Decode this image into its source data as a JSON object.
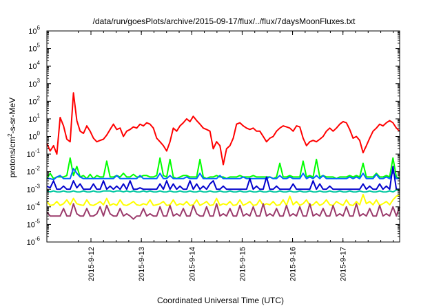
{
  "chart_data": {
    "type": "line",
    "title": "/data/run/goesPlots/archive/2015-09-17/flux/../flux/7daysMoonFluxes.txt",
    "xlabel": "Coordinated Universal Time (UTC)",
    "ylabel": {
      "base": "protons/cm",
      "sup": "2",
      "rest": "-s-sr-MeV"
    },
    "y_scale": "log",
    "ylim": [
      1e-06,
      1000000.0
    ],
    "y_ticks": [
      {
        "base": "10",
        "exp": "6",
        "value": 1000000.0
      },
      {
        "base": "10",
        "exp": "5",
        "value": 100000.0
      },
      {
        "base": "10",
        "exp": "4",
        "value": 10000.0
      },
      {
        "base": "10",
        "exp": "3",
        "value": 1000.0
      },
      {
        "base": "10",
        "exp": "2",
        "value": 100.0
      },
      {
        "base": "10",
        "exp": "1",
        "value": 10.0
      },
      {
        "base": "10",
        "exp": "0",
        "value": 1
      },
      {
        "base": "10",
        "exp": "-1",
        "value": 0.1
      },
      {
        "base": "10",
        "exp": "-2",
        "value": 0.01
      },
      {
        "base": "10",
        "exp": "-3",
        "value": 0.001
      },
      {
        "base": "10",
        "exp": "-4",
        "value": 0.0001
      },
      {
        "base": "10",
        "exp": "-5",
        "value": 1e-05
      },
      {
        "base": "10",
        "exp": "-6",
        "value": 1e-06
      }
    ],
    "xlim": [
      "2015-09-11 03:00",
      "2015-09-18 00:00"
    ],
    "x_ticks": [
      "2015-9-12",
      "2015-9-13",
      "2015-9-14",
      "2015-9-15",
      "2015-9-16",
      "2015-9-17"
    ],
    "grid": false,
    "legend": "none",
    "series": [
      {
        "color": "#ff0000",
        "values": [
          0.4,
          0.15,
          0.3,
          0.1,
          12,
          4,
          0.7,
          0.5,
          300,
          8,
          2,
          1.5,
          4,
          2,
          0.8,
          0.5,
          0.6,
          0.7,
          1.2,
          2.5,
          5,
          2.5,
          3,
          1,
          2,
          2.5,
          3.5,
          3,
          5,
          4,
          6,
          5,
          3,
          0.8,
          0.5,
          0.3,
          0.15,
          0.5,
          3,
          2,
          4,
          6,
          10,
          7,
          14,
          8,
          5,
          3,
          2.5,
          2,
          0.2,
          0.5,
          0.3,
          0.025,
          0.2,
          0.3,
          0.8,
          5,
          6,
          4,
          3,
          2.5,
          3,
          2,
          2,
          1,
          0.5,
          0.8,
          1,
          2,
          3,
          4,
          3.5,
          3,
          2,
          4,
          3.5,
          0.8,
          0.3,
          0.5,
          0.6,
          0.5,
          0.7,
          1,
          2,
          3,
          2,
          3,
          5,
          7,
          6,
          2.5,
          0.8,
          1,
          0.6,
          0.12,
          0.3,
          0.8,
          2,
          3,
          5,
          4,
          6,
          8,
          6,
          3,
          2
        ]
      },
      {
        "color": "#00ff00",
        "values": [
          0.004,
          0.008,
          0.004,
          0.005,
          0.005,
          0.005,
          0.006,
          0.06,
          0.006,
          0.02,
          0.005,
          0.006,
          0.004,
          0.007,
          0.004,
          0.006,
          0.005,
          0.005,
          0.04,
          0.005,
          0.005,
          0.006,
          0.005,
          0.008,
          0.005,
          0.005,
          0.007,
          0.005,
          0.005,
          0.006,
          0.006,
          0.005,
          0.005,
          0.006,
          0.06,
          0.006,
          0.005,
          0.05,
          0.005,
          0.004,
          0.005,
          0.006,
          0.006,
          0.005,
          0.005,
          0.005,
          0.05,
          0.005,
          0.004,
          0.005,
          0.005,
          0.006,
          0.005,
          0.005,
          0.004,
          0.005,
          0.005,
          0.005,
          0.006,
          0.005,
          0.005,
          0.005,
          0.006,
          0.005,
          0.005,
          0.005,
          0.005,
          0.005,
          0.004,
          0.005,
          0.03,
          0.005,
          0.005,
          0.006,
          0.005,
          0.005,
          0.005,
          0.04,
          0.005,
          0.006,
          0.005,
          0.05,
          0.005,
          0.006,
          0.005,
          0.005,
          0.005,
          0.004,
          0.005,
          0.005,
          0.005,
          0.006,
          0.005,
          0.006,
          0.005,
          0.03,
          0.005,
          0.005,
          0.005,
          0.008,
          0.005,
          0.005,
          0.006,
          0.005,
          0.06,
          0.005,
          0.004
        ]
      },
      {
        "color": "#0066ff",
        "values": [
          0.004,
          0.004,
          0.0035,
          0.005,
          0.006,
          0.004,
          0.004,
          0.004,
          0.015,
          0.008,
          0.005,
          0.004,
          0.004,
          0.004,
          0.004,
          0.004,
          0.004,
          0.004,
          0.004,
          0.004,
          0.004,
          0.006,
          0.004,
          0.004,
          0.004,
          0.004,
          0.004,
          0.004,
          0.006,
          0.004,
          0.004,
          0.004,
          0.004,
          0.004,
          0.008,
          0.004,
          0.004,
          0.006,
          0.004,
          0.004,
          0.004,
          0.004,
          0.005,
          0.004,
          0.004,
          0.004,
          0.008,
          0.004,
          0.004,
          0.004,
          0.004,
          0.004,
          0.006,
          0.004,
          0.004,
          0.004,
          0.004,
          0.004,
          0.004,
          0.005,
          0.004,
          0.004,
          0.004,
          0.004,
          0.004,
          0.004,
          0.004,
          0.005,
          0.004,
          0.004,
          0.006,
          0.004,
          0.004,
          0.005,
          0.004,
          0.004,
          0.004,
          0.008,
          0.004,
          0.005,
          0.004,
          0.006,
          0.004,
          0.006,
          0.004,
          0.004,
          0.004,
          0.004,
          0.004,
          0.004,
          0.004,
          0.005,
          0.004,
          0.005,
          0.004,
          0.008,
          0.004,
          0.004,
          0.004,
          0.007,
          0.004,
          0.004,
          0.005,
          0.004,
          0.01,
          0.004,
          0.004
        ]
      },
      {
        "color": "#0000cc",
        "values": [
          0.0015,
          0.0012,
          0.003,
          0.001,
          0.001,
          0.0015,
          0.001,
          0.001,
          0.003,
          0.0012,
          0.002,
          0.001,
          0.001,
          0.001,
          0.002,
          0.001,
          0.001,
          0.003,
          0.001,
          0.0015,
          0.001,
          0.0015,
          0.001,
          0.002,
          0.001,
          0.003,
          0.001,
          0.001,
          0.0012,
          0.001,
          0.001,
          0.001,
          0.001,
          0.001,
          0.002,
          0.001,
          0.003,
          0.001,
          0.002,
          0.001,
          0.0015,
          0.001,
          0.001,
          0.003,
          0.001,
          0.002,
          0.001,
          0.0015,
          0.001,
          0.002,
          0.003,
          0.001,
          0.001,
          0.0015,
          0.001,
          0.001,
          0.001,
          0.001,
          0.001,
          0.001,
          0.001,
          0.004,
          0.001,
          0.0015,
          0.001,
          0.001,
          0.005,
          0.001,
          0.001,
          0.0015,
          0.001,
          0.001,
          0.001,
          0.001,
          0.002,
          0.001,
          0.001,
          0.001,
          0.001,
          0.001,
          0.003,
          0.001,
          0.002,
          0.001,
          0.001,
          0.0015,
          0.001,
          0.001,
          0.001,
          0.001,
          0.001,
          0.001,
          0.001,
          0.001,
          0.001,
          0.002,
          0.001,
          0.0015,
          0.001,
          0.001,
          0.002,
          0.001,
          0.0015,
          0.001,
          0.02,
          0.001,
          0.001
        ]
      },
      {
        "color": "#00c8a0",
        "values": [
          0.0008,
          0.0007,
          0.0008,
          0.0007,
          0.0007,
          0.0008,
          0.0007,
          0.0007,
          0.0008,
          0.0007,
          0.0007,
          0.0008,
          0.0007,
          0.0007,
          0.0008,
          0.0007,
          0.0007,
          0.0008,
          0.0008,
          0.0008,
          0.0007,
          0.0008,
          0.0008,
          0.0007,
          0.0008,
          0.0007,
          0.0008,
          0.0007,
          0.0007,
          0.0008,
          0.0007,
          0.0008,
          0.0007,
          0.0007,
          0.0008,
          0.0007,
          0.0007,
          0.0008,
          0.0007,
          0.0007,
          0.0008,
          0.0007,
          0.0007,
          0.0008,
          0.0007,
          0.0007,
          0.0008,
          0.0007,
          0.0007,
          0.0008,
          0.0007,
          0.0007,
          0.0008,
          0.0007,
          0.0007,
          0.0008,
          0.0007,
          0.0007,
          0.0008,
          0.0007,
          0.0007,
          0.0008,
          0.0007,
          0.0007,
          0.0008,
          0.0007,
          0.0007,
          0.0008,
          0.0007,
          0.0007,
          0.0008,
          0.0007,
          0.0007,
          0.0008,
          0.0007,
          0.0007,
          0.0008,
          0.0007,
          0.0007,
          0.0008,
          0.0007,
          0.0007,
          0.0008,
          0.0007,
          0.0007,
          0.0008,
          0.0007,
          0.0007,
          0.0008,
          0.0007,
          0.0007,
          0.0008,
          0.0007,
          0.0007,
          0.0008,
          0.0007,
          0.0007,
          0.0008,
          0.0007,
          0.0007,
          0.0008,
          0.0007,
          0.0007,
          0.0008,
          0.0007,
          0.0009,
          0.0009
        ]
      },
      {
        "color": "#ffff00",
        "values": [
          0.0002,
          0.00012,
          0.00013,
          0.0002,
          0.00012,
          0.00015,
          0.00025,
          0.00013,
          0.0003,
          0.00015,
          0.00013,
          0.00012,
          0.00025,
          0.00013,
          0.00012,
          0.00015,
          0.0002,
          0.00013,
          0.0003,
          0.00012,
          0.00015,
          0.00012,
          0.00025,
          0.00013,
          0.00012,
          0.00015,
          0.0002,
          0.00013,
          0.00012,
          0.00015,
          0.00013,
          0.00025,
          0.00012,
          0.00013,
          0.00015,
          0.0002,
          0.00012,
          0.00013,
          0.00025,
          0.00012,
          0.00015,
          0.00013,
          0.0002,
          0.00012,
          0.00013,
          0.00025,
          0.00012,
          0.00015,
          0.0002,
          0.00012,
          0.00013,
          0.0003,
          0.00012,
          0.00015,
          0.00013,
          0.0002,
          0.00012,
          0.00013,
          0.00025,
          0.00012,
          0.00015,
          0.0002,
          0.00012,
          0.00013,
          0.00025,
          0.00012,
          0.00015,
          0.00013,
          0.0002,
          0.00012,
          0.00013,
          0.00025,
          0.00012,
          0.0004,
          0.00013,
          0.0002,
          0.00012,
          0.00015,
          0.00025,
          0.00012,
          0.00013,
          0.0002,
          0.00012,
          0.00015,
          0.00025,
          0.00013,
          0.00012,
          0.0002,
          0.00015,
          0.00012,
          0.00025,
          0.00013,
          0.00012,
          0.0002,
          0.00013,
          0.0005,
          0.00015,
          0.0002,
          0.00013,
          0.00025,
          0.00012,
          0.00015,
          0.0002,
          0.00013,
          0.00025,
          0.0004,
          0.0005
        ]
      },
      {
        "color": "#9b3a6b",
        "values": [
          5e-05,
          3e-05,
          3e-05,
          3e-05,
          3e-05,
          8e-05,
          3e-05,
          3e-05,
          0.00015,
          4e-05,
          3e-05,
          3e-05,
          8e-05,
          3e-05,
          3e-05,
          4e-05,
          0.0001,
          3e-05,
          0.00012,
          4e-05,
          3e-05,
          3e-05,
          8e-05,
          3e-05,
          4e-05,
          3e-05,
          2e-05,
          3e-05,
          3e-05,
          8e-05,
          3e-05,
          4e-05,
          3e-05,
          3e-05,
          0.0001,
          3e-05,
          3e-05,
          0.00012,
          3e-05,
          4e-05,
          3e-05,
          8e-05,
          3e-05,
          3e-05,
          0.00012,
          4e-05,
          3e-05,
          3e-05,
          0.0001,
          3e-05,
          3e-05,
          0.00015,
          3e-05,
          4e-05,
          3e-05,
          8e-05,
          3e-05,
          3e-05,
          0.00012,
          3e-05,
          4e-05,
          3e-05,
          0.0001,
          3e-05,
          3e-05,
          0.00015,
          3e-05,
          4e-05,
          3e-05,
          8e-05,
          3e-05,
          3e-05,
          0.00012,
          3e-05,
          4e-05,
          3e-05,
          0.0001,
          3e-05,
          3e-05,
          0.00015,
          3e-05,
          4e-05,
          3e-05,
          8e-05,
          3e-05,
          3e-05,
          0.00012,
          3e-05,
          4e-05,
          3e-05,
          0.0001,
          3e-05,
          3e-05,
          0.00015,
          3e-05,
          4e-05,
          3e-05,
          8e-05,
          3e-05,
          3e-05,
          0.00012,
          3e-05,
          4e-05,
          3e-05,
          0.0001,
          3e-05,
          0.0001
        ]
      }
    ]
  }
}
